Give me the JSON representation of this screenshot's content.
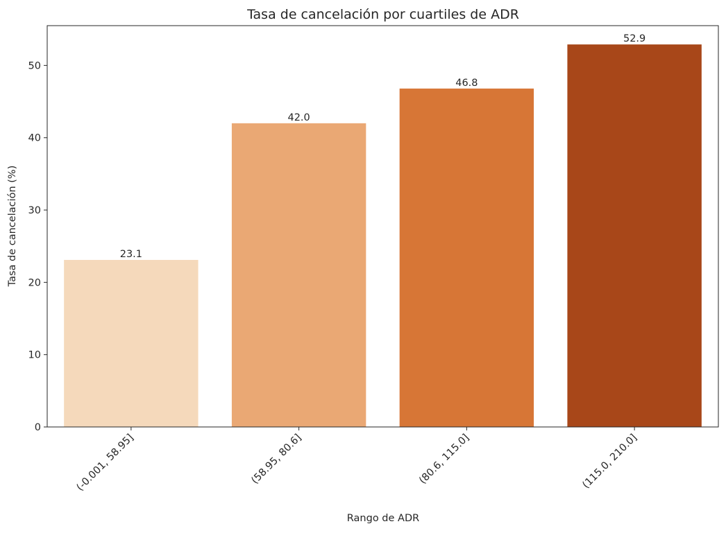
{
  "chart_data": {
    "type": "bar",
    "title": "Tasa de cancelación por cuartiles de ADR",
    "xlabel": "Rango de ADR",
    "ylabel": "Tasa de cancelación (%)",
    "categories": [
      "(-0.001, 58.95]",
      "(58.95, 80.6]",
      "(80.6, 115.0]",
      "(115.0, 210.0]"
    ],
    "values": [
      23.1,
      42.0,
      46.8,
      52.9
    ],
    "value_labels": [
      "23.1",
      "42.0",
      "46.8",
      "52.9"
    ],
    "colors": [
      "#f5d9bb",
      "#eaa874",
      "#d77636",
      "#a84719"
    ],
    "ylim": [
      0,
      55.5
    ],
    "yticks": [
      0,
      10,
      20,
      30,
      40,
      50
    ],
    "grid": false,
    "legend": "none"
  }
}
